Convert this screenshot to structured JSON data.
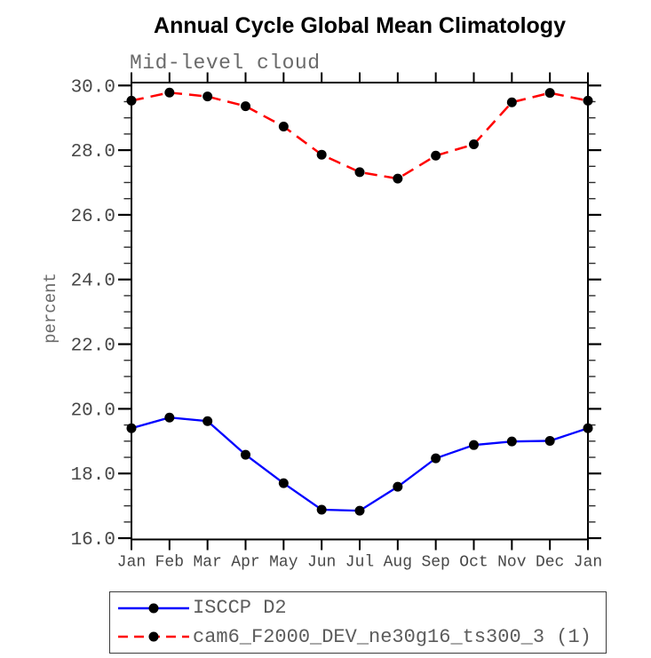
{
  "chart_data": {
    "type": "line",
    "title": "Annual Cycle Global Mean Climatology",
    "subtitle": "Mid-level cloud",
    "ylabel": "percent",
    "xlabel": "",
    "categories": [
      "Jan",
      "Feb",
      "Mar",
      "Apr",
      "May",
      "Jun",
      "Jul",
      "Aug",
      "Sep",
      "Oct",
      "Nov",
      "Dec",
      "Jan"
    ],
    "ylim": [
      15.96,
      30.09
    ],
    "yticks_major": [
      16.0,
      18.0,
      20.0,
      22.0,
      24.0,
      26.0,
      28.0,
      30.0
    ],
    "ytick_labels": [
      "16.0",
      "18.0",
      "20.0",
      "22.0",
      "24.0",
      "26.0",
      "28.0",
      "30.0"
    ],
    "yminor_step": 0.5,
    "grid": false,
    "legend_position": "below-plot",
    "series": [
      {
        "name": "ISCCP D2",
        "color": "#0000ff",
        "dash": "solid",
        "marker": "filled-circle",
        "marker_color": "#000000",
        "values": [
          19.4,
          19.73,
          19.62,
          18.58,
          17.7,
          16.88,
          16.85,
          17.59,
          18.47,
          18.88,
          18.99,
          19.01,
          19.4
        ]
      },
      {
        "name": "cam6_F2000_DEV_ne30g16_ts300_3 (1)",
        "color": "#ff0000",
        "dash": "dashed",
        "marker": "filled-circle",
        "marker_color": "#000000",
        "values": [
          29.53,
          29.78,
          29.66,
          29.36,
          28.73,
          27.86,
          27.32,
          27.12,
          27.83,
          28.18,
          29.48,
          29.77,
          29.53
        ]
      }
    ]
  },
  "style": {
    "axis_color": "#000000",
    "tick_text_color": "#474747",
    "muted_text_color": "#6a6a6a",
    "legend_text_color": "#5c5c5c",
    "series_blue": "#0000ff",
    "series_red": "#ff0000",
    "marker_color": "#000000",
    "background": "#ffffff"
  }
}
